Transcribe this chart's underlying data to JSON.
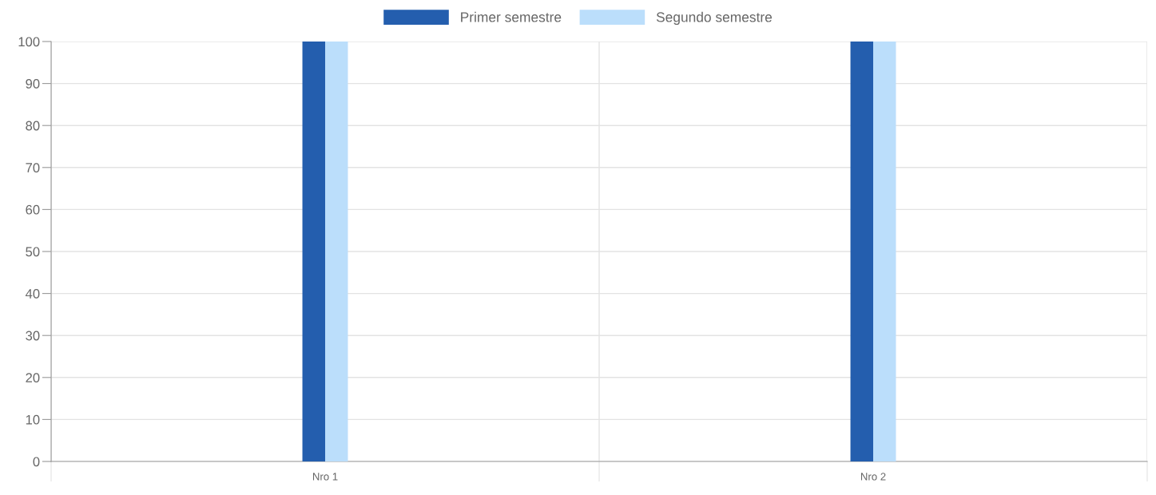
{
  "chart_data": {
    "type": "bar",
    "categories": [
      "Nro 1",
      "Nro 2"
    ],
    "series": [
      {
        "name": "Primer semestre",
        "color": "#245eae",
        "values": [
          100,
          100
        ]
      },
      {
        "name": "Segundo semestre",
        "color": "#bbdefb",
        "values": [
          100,
          100
        ]
      }
    ],
    "ylim": [
      0,
      100
    ],
    "yticks": [
      0,
      10,
      20,
      30,
      40,
      50,
      60,
      70,
      80,
      90,
      100
    ],
    "grid": true,
    "legend": "top"
  }
}
